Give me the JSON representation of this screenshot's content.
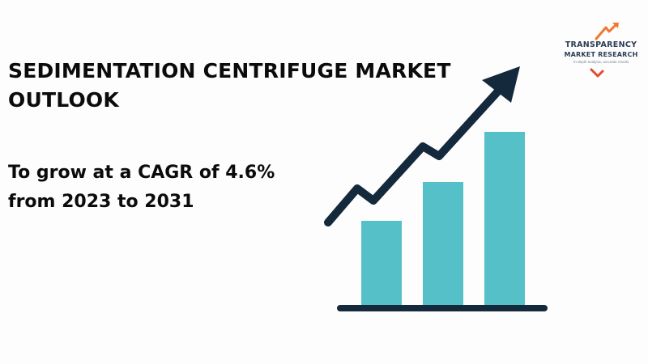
{
  "headline": {
    "line1": "SEDIMENTATION CENTRIFUGE MARKET",
    "line2": "OUTLOOK"
  },
  "subhead": {
    "line1": "To grow at a CAGR of 4.6%",
    "line2": "from 2023 to 2031"
  },
  "logo": {
    "line1": "TRANSPARENCY",
    "line2": "MARKET RESEARCH",
    "line3": "In-depth analysis, accurate results",
    "icon": "upward-arrow-logo-icon",
    "colors": {
      "text": "#2b3d56",
      "accent_orange": "#f2762e",
      "accent_red": "#e24a2f"
    }
  },
  "illustration": {
    "type": "growth-bar-chart-with-trend-arrow",
    "bars_relative_heights": [
      0.48,
      0.68,
      0.9
    ],
    "colors": {
      "bar": "#56c0c8",
      "arrow": "#14293b",
      "baseline": "#14293b"
    }
  }
}
